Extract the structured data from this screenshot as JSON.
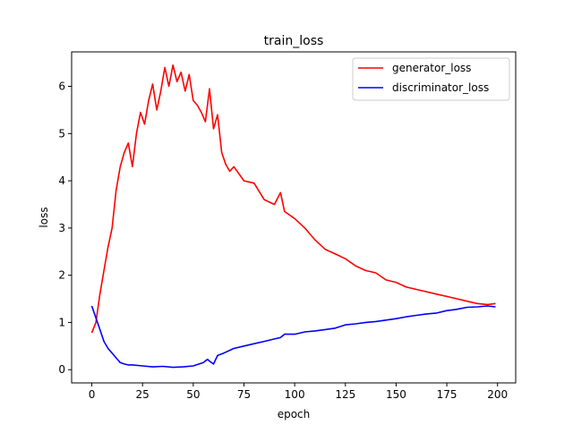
{
  "chart_data": {
    "type": "line",
    "title": "train_loss",
    "xlabel": "epoch",
    "ylabel": "loss",
    "xlim": [
      -9.95,
      208.95
    ],
    "ylim": [
      -0.28,
      6.73
    ],
    "xticks": [
      0,
      25,
      50,
      75,
      100,
      125,
      150,
      175,
      200
    ],
    "yticks": [
      0,
      1,
      2,
      3,
      4,
      5,
      6
    ],
    "grid": false,
    "legend_position": "top-right",
    "series": [
      {
        "name": "generator_loss",
        "color": "#ff0000",
        "x": [
          0,
          2,
          4,
          6,
          8,
          10,
          12,
          14,
          16,
          18,
          20,
          22,
          24,
          26,
          28,
          30,
          32,
          34,
          36,
          38,
          40,
          42,
          44,
          46,
          48,
          50,
          52,
          54,
          56,
          58,
          60,
          62,
          64,
          66,
          68,
          70,
          75,
          80,
          85,
          90,
          93,
          95,
          100,
          105,
          110,
          115,
          120,
          125,
          130,
          135,
          140,
          145,
          150,
          155,
          160,
          165,
          170,
          175,
          180,
          185,
          190,
          195,
          199
        ],
        "y": [
          0.78,
          1.0,
          1.6,
          2.1,
          2.6,
          3.0,
          3.8,
          4.3,
          4.6,
          4.8,
          4.3,
          5.0,
          5.45,
          5.2,
          5.7,
          6.05,
          5.5,
          5.9,
          6.4,
          6.0,
          6.45,
          6.1,
          6.3,
          5.9,
          6.25,
          5.7,
          5.6,
          5.45,
          5.25,
          5.95,
          5.1,
          5.4,
          4.6,
          4.35,
          4.2,
          4.3,
          4.0,
          3.95,
          3.6,
          3.5,
          3.75,
          3.35,
          3.2,
          3.0,
          2.75,
          2.55,
          2.45,
          2.35,
          2.2,
          2.1,
          2.05,
          1.9,
          1.85,
          1.75,
          1.7,
          1.65,
          1.6,
          1.55,
          1.5,
          1.45,
          1.4,
          1.38,
          1.4
        ]
      },
      {
        "name": "discriminator_loss",
        "color": "#0000ff",
        "x": [
          0,
          2,
          4,
          6,
          8,
          10,
          12,
          14,
          16,
          18,
          20,
          25,
          30,
          35,
          40,
          45,
          50,
          55,
          57,
          58,
          60,
          62,
          65,
          70,
          75,
          80,
          85,
          90,
          93,
          95,
          100,
          105,
          110,
          115,
          120,
          125,
          130,
          135,
          140,
          145,
          150,
          155,
          160,
          165,
          170,
          175,
          180,
          185,
          190,
          195,
          199
        ],
        "y": [
          1.35,
          1.1,
          0.85,
          0.6,
          0.45,
          0.35,
          0.25,
          0.15,
          0.12,
          0.1,
          0.1,
          0.08,
          0.06,
          0.07,
          0.05,
          0.06,
          0.08,
          0.15,
          0.22,
          0.18,
          0.12,
          0.3,
          0.35,
          0.45,
          0.5,
          0.55,
          0.6,
          0.65,
          0.68,
          0.75,
          0.75,
          0.8,
          0.82,
          0.85,
          0.88,
          0.95,
          0.97,
          1.0,
          1.02,
          1.05,
          1.08,
          1.12,
          1.15,
          1.18,
          1.2,
          1.25,
          1.28,
          1.32,
          1.33,
          1.35,
          1.33
        ]
      }
    ]
  }
}
